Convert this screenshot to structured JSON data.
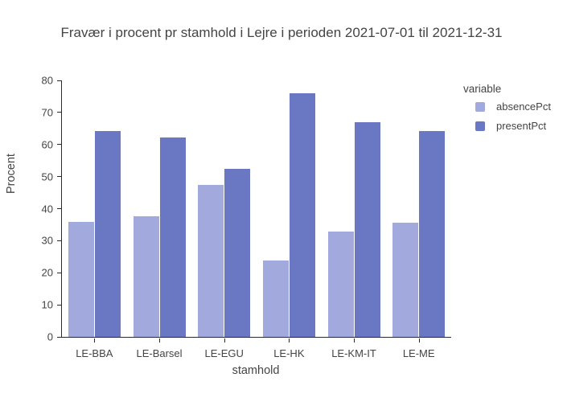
{
  "title": "Fravær i procent pr stamhold i Lejre i perioden 2021-07-01 til 2021-12-31",
  "chart_data": {
    "type": "bar",
    "categories": [
      "LE-BBA",
      "LE-Barsel",
      "LE-EGU",
      "LE-HK",
      "LE-KM-IT",
      "LE-ME"
    ],
    "series": [
      {
        "name": "absencePct",
        "color": "#a2a9dc",
        "values": [
          35.8,
          37.5,
          47.4,
          23.9,
          32.9,
          35.6
        ]
      },
      {
        "name": "presentPct",
        "color": "#6a78c3",
        "values": [
          64.1,
          62.3,
          52.5,
          75.9,
          66.9,
          64.2
        ]
      }
    ],
    "xlabel": "stamhold",
    "ylabel": "Procent",
    "ylim": [
      0,
      80
    ],
    "yticks": [
      0,
      10,
      20,
      30,
      40,
      50,
      60,
      70,
      80
    ],
    "legend_title": "variable",
    "legend_position": "right",
    "grid": false,
    "axis_color": "#2a2a2a",
    "text_color": "#444444"
  }
}
